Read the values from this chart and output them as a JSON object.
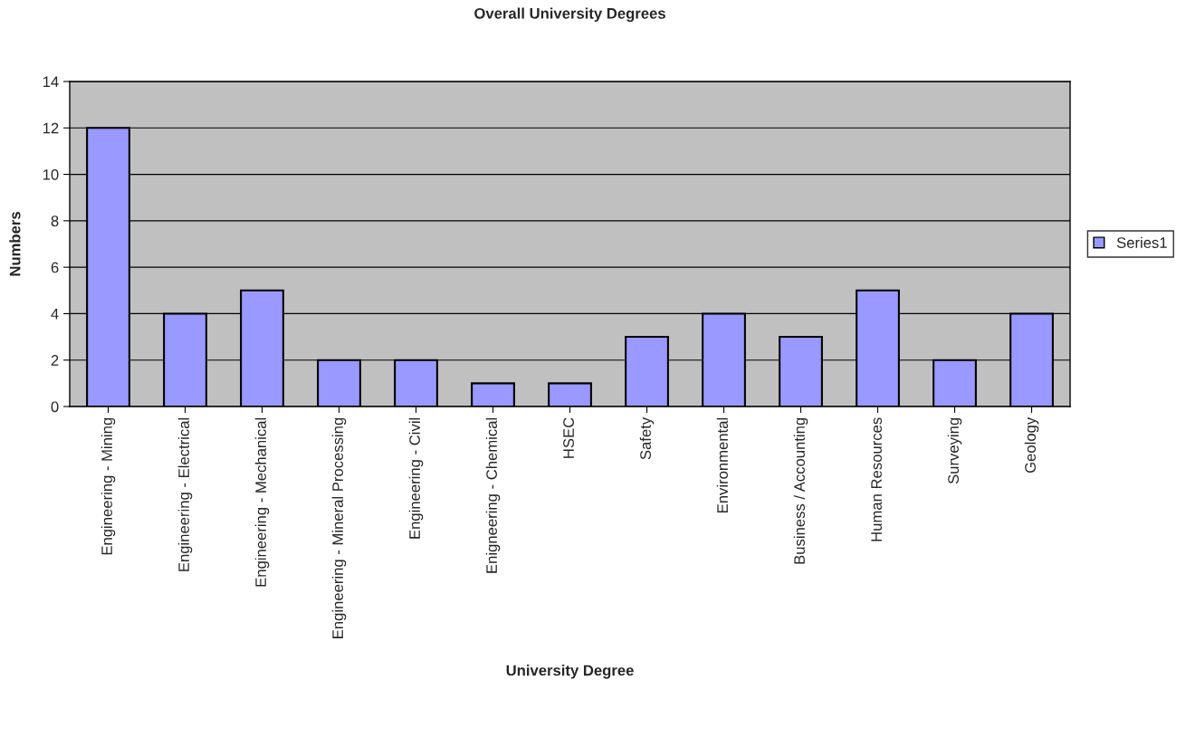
{
  "chart_data": {
    "type": "bar",
    "title": "Overall University Degrees",
    "xlabel": "University Degree",
    "ylabel": "Numbers",
    "categories": [
      "Engineering - Mining",
      "Engineering - Electrical",
      "Engineering - Mechanical",
      "Engineering - Mineral Processing",
      "Engineering - Civil",
      "Enigneering - Chemical",
      "HSEC",
      "Safety",
      "Environmental",
      "Business / Accounting",
      "Human Resources",
      "Surveying",
      "Geology"
    ],
    "series": [
      {
        "name": "Series1",
        "color": "#9999ff",
        "values": [
          12,
          4,
          5,
          2,
          2,
          1,
          1,
          3,
          4,
          3,
          5,
          2,
          4
        ]
      }
    ],
    "ylim": [
      0,
      14
    ],
    "yticks": [
      0,
      2,
      4,
      6,
      8,
      10,
      12,
      14
    ],
    "grid": "y",
    "legend": "right"
  }
}
